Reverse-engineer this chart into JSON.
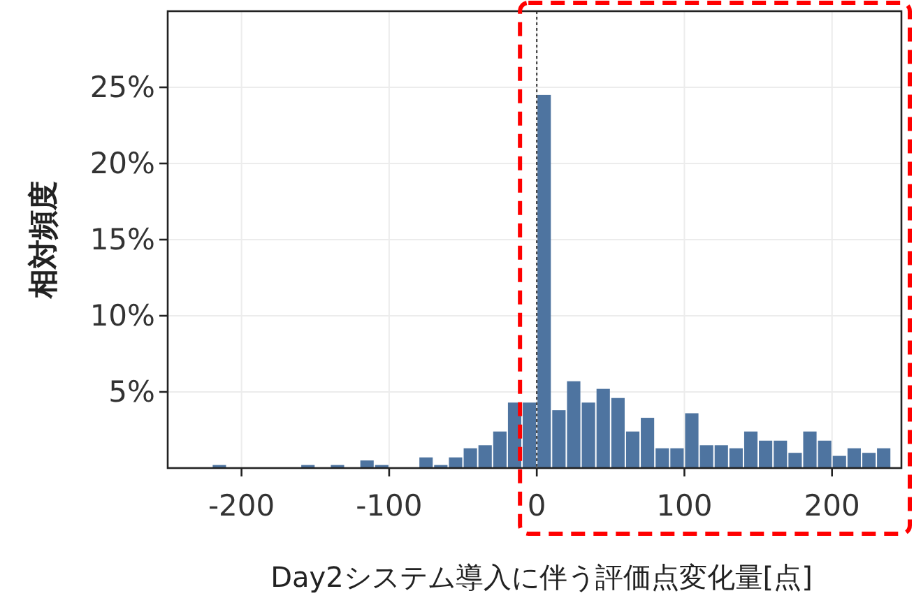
{
  "chart_data": {
    "type": "histogram",
    "xlabel": "Day2システム導入に伴う評価点変化量[点]",
    "ylabel": "相対頻度",
    "bins": [
      -220,
      -210,
      -200,
      -190,
      -180,
      -170,
      -160,
      -150,
      -140,
      -130,
      -120,
      -110,
      -100,
      -90,
      -80,
      -70,
      -60,
      -50,
      -40,
      -30,
      -20,
      -10,
      0,
      10,
      20,
      30,
      40,
      50,
      60,
      70,
      80,
      90,
      100,
      110,
      120,
      130,
      140,
      150,
      160,
      170,
      180,
      190,
      200,
      210,
      220,
      230,
      240
    ],
    "values": [
      0.2,
      0,
      0,
      0,
      0,
      0,
      0.2,
      0,
      0.2,
      0,
      0.5,
      0.2,
      0,
      0,
      0.7,
      0.2,
      0.7,
      1.3,
      1.5,
      2.4,
      4.3,
      4.3,
      24.5,
      3.8,
      5.7,
      4.3,
      5.2,
      4.6,
      2.4,
      3.3,
      1.3,
      1.3,
      3.6,
      1.5,
      1.5,
      1.3,
      2.4,
      1.8,
      1.8,
      1.0,
      2.4,
      1.8,
      0.8,
      1.3,
      1.0,
      1.3
    ],
    "color": "#4e74a0",
    "xlim": [
      -250,
      247
    ],
    "ylim": [
      0,
      30
    ],
    "xticks": [
      -200,
      -100,
      0,
      100,
      200
    ],
    "yticks": [
      {
        "value": 5,
        "label": "5%"
      },
      {
        "value": 10,
        "label": "10%"
      },
      {
        "value": 15,
        "label": "15%"
      },
      {
        "value": 20,
        "label": "20%"
      },
      {
        "value": 25,
        "label": "25%"
      }
    ],
    "grid": true,
    "ref_lines": [
      {
        "axis": "x",
        "value": 0,
        "color": "#333333",
        "line_style": "dotted"
      }
    ]
  }
}
